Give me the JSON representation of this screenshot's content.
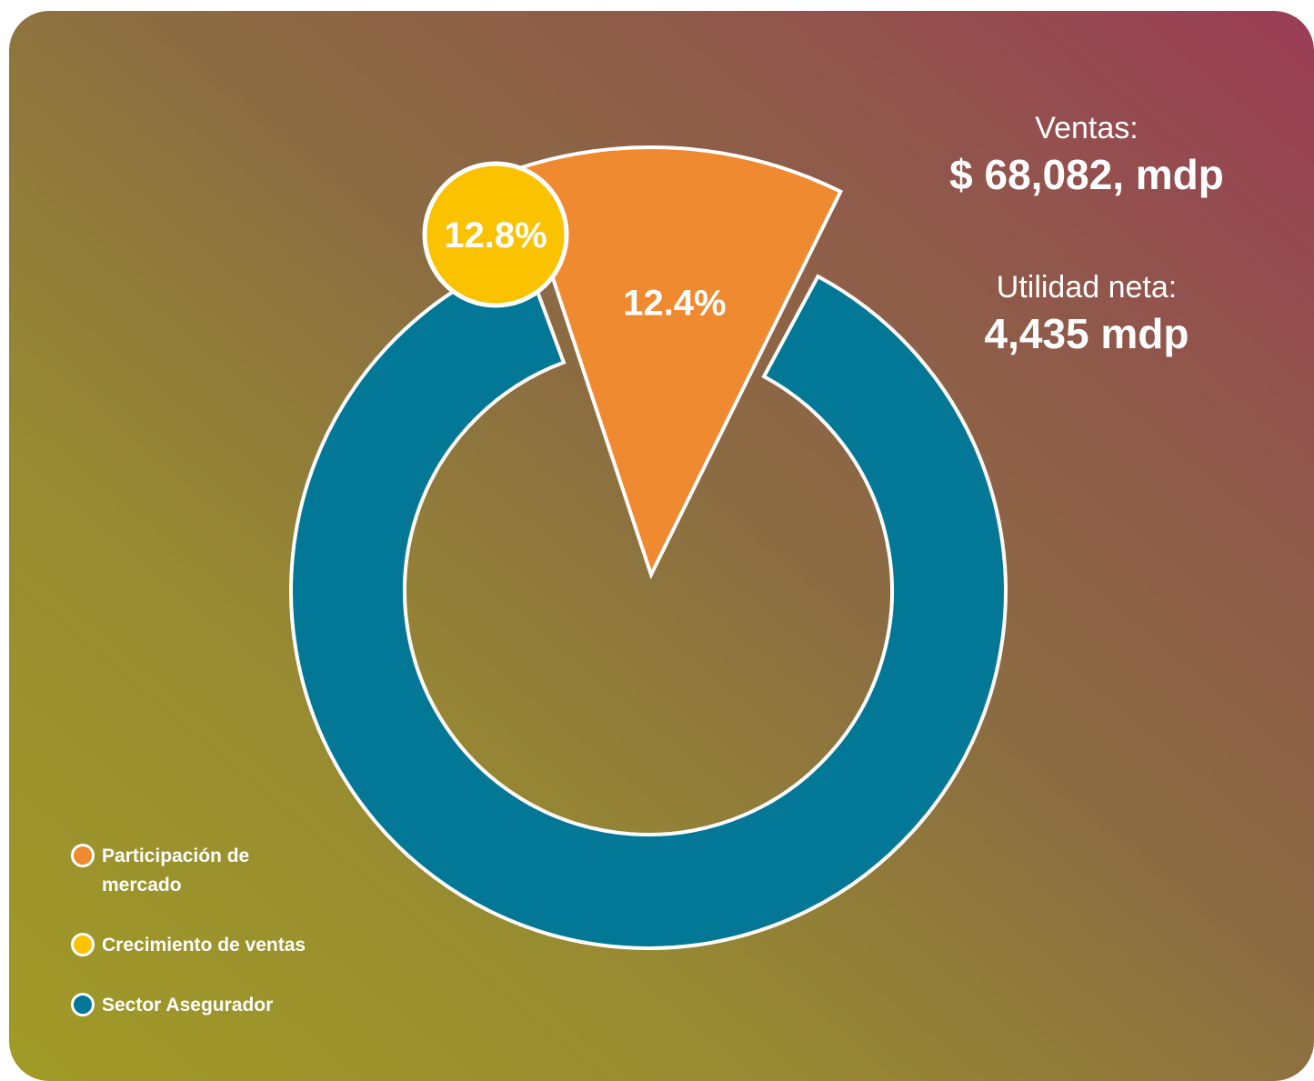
{
  "chart_data": {
    "type": "donut",
    "categories": [
      "Participación de mercado",
      "Crecimiento de ventas",
      "Sector Asegurador"
    ],
    "values": [
      12.4,
      12.8,
      87.6
    ],
    "value_labels": [
      "12.4%",
      "12.8%",
      null
    ],
    "colors": [
      "#f08a30",
      "#fbc200",
      "#037896"
    ],
    "stats": [
      {
        "label": "Ventas:",
        "value": "$ 68,082, mdp"
      },
      {
        "label": "Utilidad neta:",
        "value": "4,435 mdp"
      }
    ]
  }
}
